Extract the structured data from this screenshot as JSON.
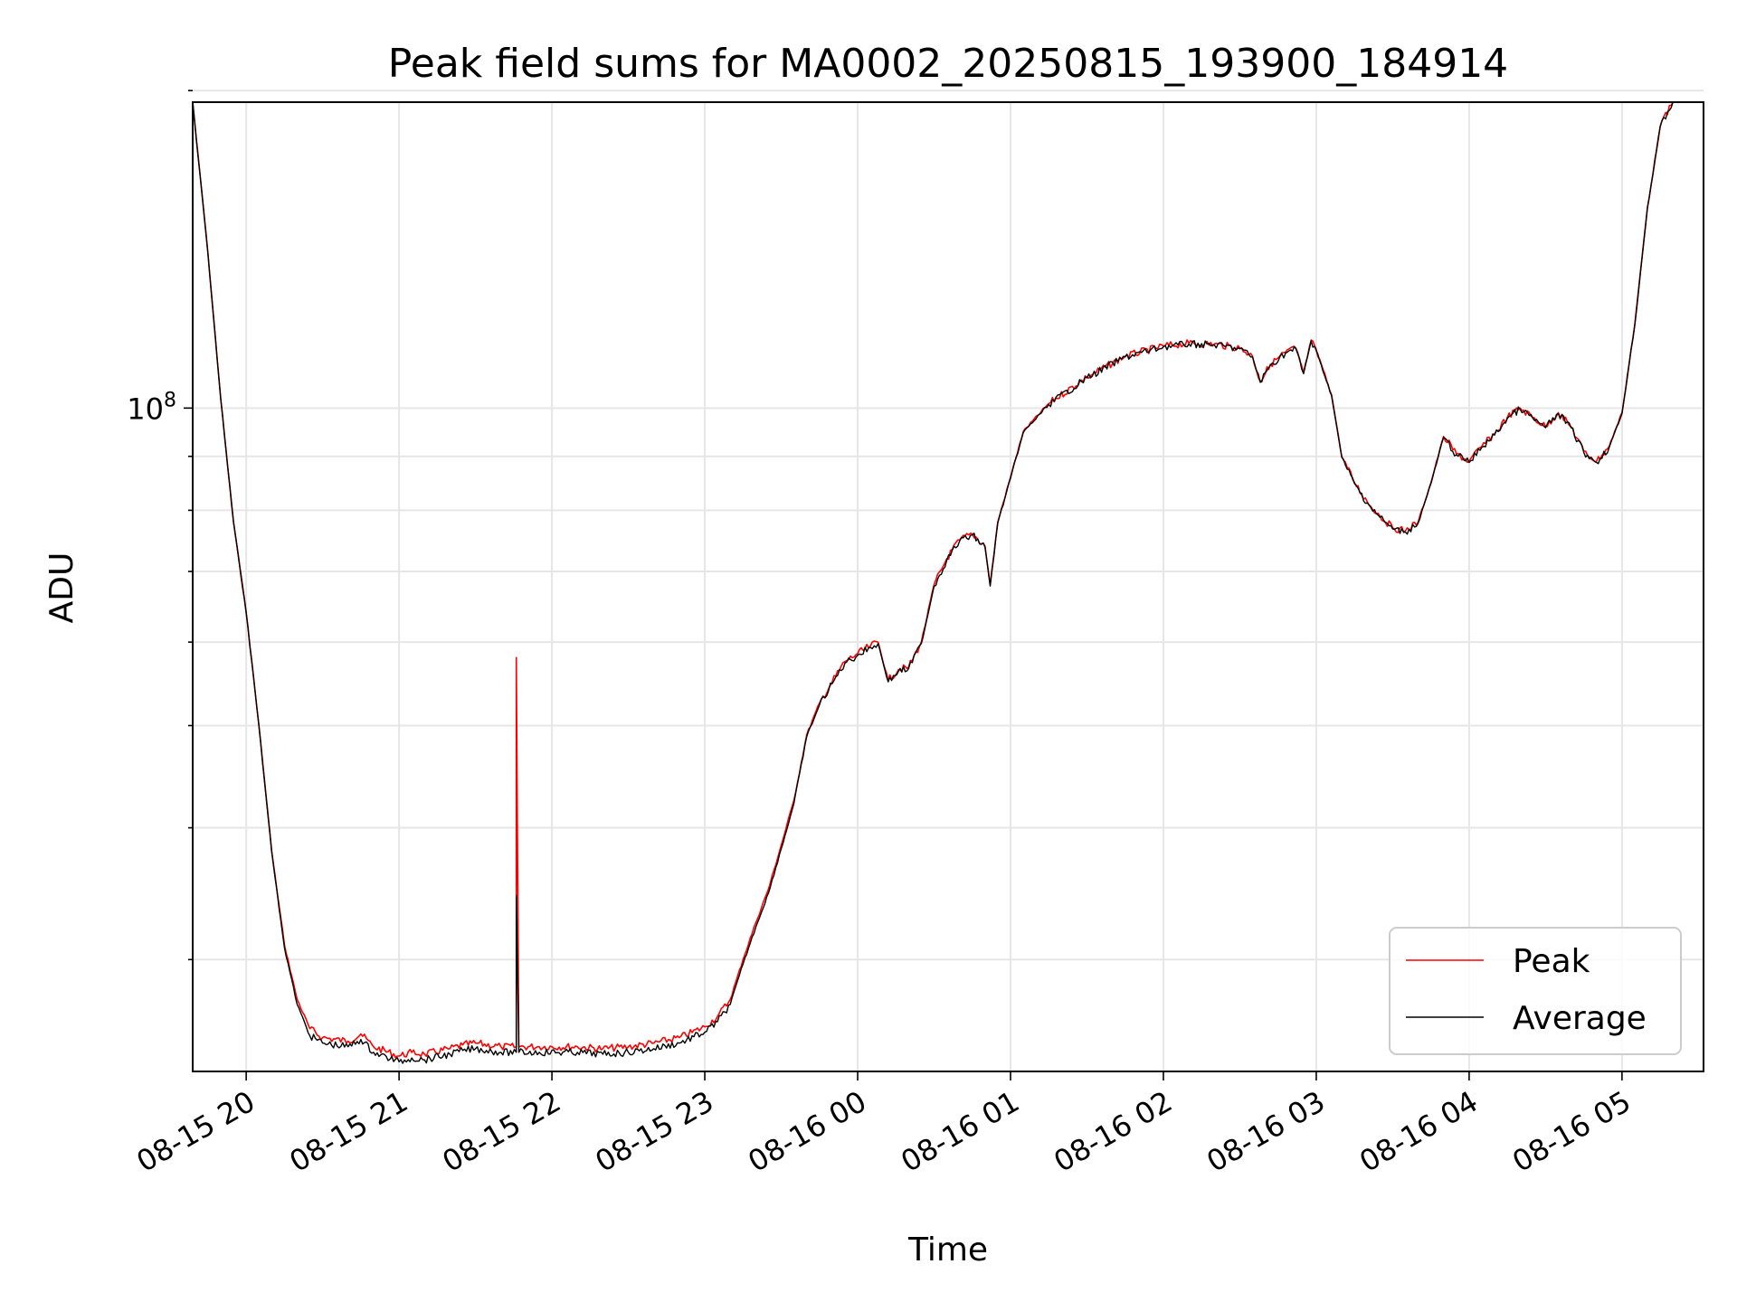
{
  "chart_data": {
    "type": "line",
    "title": "Peak field sums for MA0002_20250815_193900_184914",
    "xlabel": "Time",
    "ylabel": "ADU",
    "y_scale": "log",
    "ylim": [
      23500000,
      195000000
    ],
    "xlim": [
      "2025-08-15 19:39",
      "2025-08-16 05:32"
    ],
    "y_major_ticks": [
      {
        "value": 100000000,
        "base": "10",
        "exp": "8"
      }
    ],
    "y_minor_ticks": [
      30000000,
      40000000,
      50000000,
      60000000,
      70000000,
      80000000,
      90000000,
      200000000
    ],
    "x_ticks": [
      {
        "time": "2025-08-15 20:00",
        "label": "08-15 20"
      },
      {
        "time": "2025-08-15 21:00",
        "label": "08-15 21"
      },
      {
        "time": "2025-08-15 22:00",
        "label": "08-15 22"
      },
      {
        "time": "2025-08-15 23:00",
        "label": "08-15 23"
      },
      {
        "time": "2025-08-16 00:00",
        "label": "08-16 00"
      },
      {
        "time": "2025-08-16 01:00",
        "label": "08-16 01"
      },
      {
        "time": "2025-08-16 02:00",
        "label": "08-16 02"
      },
      {
        "time": "2025-08-16 03:00",
        "label": "08-16 03"
      },
      {
        "time": "2025-08-16 04:00",
        "label": "08-16 04"
      },
      {
        "time": "2025-08-16 05:00",
        "label": "08-16 05"
      }
    ],
    "grid": true,
    "legend_position": "bottom-right",
    "series": [
      {
        "name": "Peak",
        "color": "#ff0000",
        "points": [
          [
            "2025-08-15 19:39",
            195000000
          ],
          [
            "2025-08-15 19:45",
            140000000
          ],
          [
            "2025-08-15 19:50",
            102000000
          ],
          [
            "2025-08-15 19:55",
            78000000
          ],
          [
            "2025-08-15 20:00",
            64000000
          ],
          [
            "2025-08-15 20:05",
            50000000
          ],
          [
            "2025-08-15 20:10",
            38000000
          ],
          [
            "2025-08-15 20:15",
            31000000
          ],
          [
            "2025-08-15 20:20",
            27500000
          ],
          [
            "2025-08-15 20:25",
            25800000
          ],
          [
            "2025-08-15 20:30",
            25300000
          ],
          [
            "2025-08-15 20:40",
            25100000
          ],
          [
            "2025-08-15 20:45",
            25500000
          ],
          [
            "2025-08-15 20:50",
            24800000
          ],
          [
            "2025-08-15 21:00",
            24300000
          ],
          [
            "2025-08-15 21:05",
            24500000
          ],
          [
            "2025-08-15 21:10",
            24400000
          ],
          [
            "2025-08-15 21:20",
            24700000
          ],
          [
            "2025-08-15 21:25",
            24900000
          ],
          [
            "2025-08-15 21:30",
            25000000
          ],
          [
            "2025-08-15 21:40",
            24800000
          ],
          [
            "2025-08-15 21:46",
            24800000
          ],
          [
            "2025-08-15 21:46",
            58000000
          ],
          [
            "2025-08-15 21:47",
            24800000
          ],
          [
            "2025-08-15 21:55",
            24800000
          ],
          [
            "2025-08-15 22:10",
            24800000
          ],
          [
            "2025-08-15 22:20",
            24700000
          ],
          [
            "2025-08-15 22:30",
            24800000
          ],
          [
            "2025-08-15 22:40",
            25000000
          ],
          [
            "2025-08-15 22:50",
            25300000
          ],
          [
            "2025-08-15 23:00",
            25900000
          ],
          [
            "2025-08-15 23:05",
            26500000
          ],
          [
            "2025-08-15 23:10",
            27500000
          ],
          [
            "2025-08-15 23:15",
            30000000
          ],
          [
            "2025-08-15 23:20",
            32500000
          ],
          [
            "2025-08-15 23:25",
            35000000
          ],
          [
            "2025-08-15 23:30",
            38500000
          ],
          [
            "2025-08-15 23:35",
            42500000
          ],
          [
            "2025-08-15 23:40",
            49000000
          ],
          [
            "2025-08-15 23:45",
            52500000
          ],
          [
            "2025-08-15 23:50",
            55000000
          ],
          [
            "2025-08-15 23:55",
            57500000
          ],
          [
            "2025-08-16 00:00",
            58500000
          ],
          [
            "2025-08-16 00:05",
            59500000
          ],
          [
            "2025-08-16 00:08",
            60000000
          ],
          [
            "2025-08-16 00:12",
            55200000
          ],
          [
            "2025-08-16 00:16",
            56500000
          ],
          [
            "2025-08-16 00:20",
            56800000
          ],
          [
            "2025-08-16 00:25",
            60000000
          ],
          [
            "2025-08-16 00:30",
            68000000
          ],
          [
            "2025-08-16 00:35",
            72000000
          ],
          [
            "2025-08-16 00:40",
            75000000
          ],
          [
            "2025-08-16 00:45",
            76000000
          ],
          [
            "2025-08-16 00:50",
            74000000
          ],
          [
            "2025-08-16 00:52",
            68000000
          ],
          [
            "2025-08-16 00:55",
            78000000
          ],
          [
            "2025-08-16 01:00",
            86000000
          ],
          [
            "2025-08-16 01:05",
            95000000
          ],
          [
            "2025-08-16 01:15",
            101000000
          ],
          [
            "2025-08-16 01:30",
            107000000
          ],
          [
            "2025-08-16 01:45",
            112000000
          ],
          [
            "2025-08-16 02:00",
            114500000
          ],
          [
            "2025-08-16 02:10",
            115200000
          ],
          [
            "2025-08-16 02:20",
            115000000
          ],
          [
            "2025-08-16 02:30",
            114000000
          ],
          [
            "2025-08-16 02:35",
            112000000
          ],
          [
            "2025-08-16 02:38",
            106000000
          ],
          [
            "2025-08-16 02:42",
            110000000
          ],
          [
            "2025-08-16 02:48",
            113000000
          ],
          [
            "2025-08-16 02:52",
            114000000
          ],
          [
            "2025-08-16 02:55",
            108000000
          ],
          [
            "2025-08-16 02:58",
            116000000
          ],
          [
            "2025-08-16 03:02",
            110000000
          ],
          [
            "2025-08-16 03:06",
            103000000
          ],
          [
            "2025-08-16 03:10",
            90000000
          ],
          [
            "2025-08-16 03:15",
            85000000
          ],
          [
            "2025-08-16 03:20",
            81500000
          ],
          [
            "2025-08-16 03:25",
            79000000
          ],
          [
            "2025-08-16 03:30",
            77000000
          ],
          [
            "2025-08-16 03:35",
            76500000
          ],
          [
            "2025-08-16 03:40",
            78000000
          ],
          [
            "2025-08-16 03:45",
            85000000
          ],
          [
            "2025-08-16 03:50",
            94000000
          ],
          [
            "2025-08-16 03:55",
            90500000
          ],
          [
            "2025-08-16 04:00",
            89000000
          ],
          [
            "2025-08-16 04:05",
            92000000
          ],
          [
            "2025-08-16 04:10",
            94500000
          ],
          [
            "2025-08-16 04:15",
            98000000
          ],
          [
            "2025-08-16 04:20",
            100000000
          ],
          [
            "2025-08-16 04:25",
            98000000
          ],
          [
            "2025-08-16 04:30",
            96000000
          ],
          [
            "2025-08-16 04:35",
            99000000
          ],
          [
            "2025-08-16 04:40",
            96000000
          ],
          [
            "2025-08-16 04:45",
            91000000
          ],
          [
            "2025-08-16 04:50",
            89000000
          ],
          [
            "2025-08-16 04:55",
            92000000
          ],
          [
            "2025-08-16 05:00",
            99000000
          ],
          [
            "2025-08-16 05:05",
            120000000
          ],
          [
            "2025-08-16 05:10",
            155000000
          ],
          [
            "2025-08-16 05:15",
            185000000
          ],
          [
            "2025-08-16 05:20",
            195000000
          ]
        ]
      },
      {
        "name": "Average",
        "color": "#000000",
        "points": [
          [
            "2025-08-15 19:39",
            195000000
          ],
          [
            "2025-08-15 19:45",
            140000000
          ],
          [
            "2025-08-15 19:50",
            102000000
          ],
          [
            "2025-08-15 19:55",
            78000000
          ],
          [
            "2025-08-15 20:00",
            64000000
          ],
          [
            "2025-08-15 20:05",
            50000000
          ],
          [
            "2025-08-15 20:10",
            38000000
          ],
          [
            "2025-08-15 20:15",
            30800000
          ],
          [
            "2025-08-15 20:20",
            27200000
          ],
          [
            "2025-08-15 20:25",
            25400000
          ],
          [
            "2025-08-15 20:30",
            25000000
          ],
          [
            "2025-08-15 20:40",
            24800000
          ],
          [
            "2025-08-15 20:45",
            25200000
          ],
          [
            "2025-08-15 20:50",
            24500000
          ],
          [
            "2025-08-15 21:00",
            24000000
          ],
          [
            "2025-08-15 21:05",
            24200000
          ],
          [
            "2025-08-15 21:10",
            24100000
          ],
          [
            "2025-08-15 21:20",
            24400000
          ],
          [
            "2025-08-15 21:25",
            24600000
          ],
          [
            "2025-08-15 21:30",
            24700000
          ],
          [
            "2025-08-15 21:40",
            24500000
          ],
          [
            "2025-08-15 21:46",
            24500000
          ],
          [
            "2025-08-15 21:46",
            34500000
          ],
          [
            "2025-08-15 21:47",
            24500000
          ],
          [
            "2025-08-15 21:55",
            24500000
          ],
          [
            "2025-08-15 22:10",
            24500000
          ],
          [
            "2025-08-15 22:20",
            24400000
          ],
          [
            "2025-08-15 22:30",
            24500000
          ],
          [
            "2025-08-15 22:40",
            24700000
          ],
          [
            "2025-08-15 22:50",
            25000000
          ],
          [
            "2025-08-15 23:00",
            25600000
          ],
          [
            "2025-08-15 23:05",
            26200000
          ],
          [
            "2025-08-15 23:10",
            27200000
          ],
          [
            "2025-08-15 23:15",
            29700000
          ],
          [
            "2025-08-15 23:20",
            32200000
          ],
          [
            "2025-08-15 23:25",
            34700000
          ],
          [
            "2025-08-15 23:30",
            38200000
          ],
          [
            "2025-08-15 23:35",
            42200000
          ],
          [
            "2025-08-15 23:40",
            48800000
          ],
          [
            "2025-08-15 23:45",
            52300000
          ],
          [
            "2025-08-15 23:50",
            54800000
          ],
          [
            "2025-08-15 23:55",
            57300000
          ],
          [
            "2025-08-16 00:00",
            58300000
          ],
          [
            "2025-08-16 00:05",
            59300000
          ],
          [
            "2025-08-16 00:08",
            59800000
          ],
          [
            "2025-08-16 00:12",
            55000000
          ],
          [
            "2025-08-16 00:16",
            56300000
          ],
          [
            "2025-08-16 00:20",
            56600000
          ],
          [
            "2025-08-16 00:25",
            59800000
          ],
          [
            "2025-08-16 00:30",
            67800000
          ],
          [
            "2025-08-16 00:35",
            71800000
          ],
          [
            "2025-08-16 00:40",
            74800000
          ],
          [
            "2025-08-16 00:45",
            75800000
          ],
          [
            "2025-08-16 00:50",
            73800000
          ],
          [
            "2025-08-16 00:52",
            67800000
          ],
          [
            "2025-08-16 00:55",
            77800000
          ],
          [
            "2025-08-16 01:00",
            85800000
          ],
          [
            "2025-08-16 01:05",
            94800000
          ],
          [
            "2025-08-16 01:15",
            100800000
          ],
          [
            "2025-08-16 01:30",
            106800000
          ],
          [
            "2025-08-16 01:45",
            111800000
          ],
          [
            "2025-08-16 02:00",
            114300000
          ],
          [
            "2025-08-16 02:10",
            115000000
          ],
          [
            "2025-08-16 02:20",
            114800000
          ],
          [
            "2025-08-16 02:30",
            113800000
          ],
          [
            "2025-08-16 02:35",
            111800000
          ],
          [
            "2025-08-16 02:38",
            105800000
          ],
          [
            "2025-08-16 02:42",
            109800000
          ],
          [
            "2025-08-16 02:48",
            112800000
          ],
          [
            "2025-08-16 02:52",
            113800000
          ],
          [
            "2025-08-16 02:55",
            107800000
          ],
          [
            "2025-08-16 02:58",
            115800000
          ],
          [
            "2025-08-16 03:02",
            109800000
          ],
          [
            "2025-08-16 03:06",
            102800000
          ],
          [
            "2025-08-16 03:10",
            89800000
          ],
          [
            "2025-08-16 03:15",
            84800000
          ],
          [
            "2025-08-16 03:20",
            81300000
          ],
          [
            "2025-08-16 03:25",
            78800000
          ],
          [
            "2025-08-16 03:30",
            76800000
          ],
          [
            "2025-08-16 03:35",
            76300000
          ],
          [
            "2025-08-16 03:40",
            77800000
          ],
          [
            "2025-08-16 03:45",
            84800000
          ],
          [
            "2025-08-16 03:50",
            93800000
          ],
          [
            "2025-08-16 03:55",
            90300000
          ],
          [
            "2025-08-16 04:00",
            88800000
          ],
          [
            "2025-08-16 04:05",
            91800000
          ],
          [
            "2025-08-16 04:10",
            94300000
          ],
          [
            "2025-08-16 04:15",
            97800000
          ],
          [
            "2025-08-16 04:20",
            99800000
          ],
          [
            "2025-08-16 04:25",
            97800000
          ],
          [
            "2025-08-16 04:30",
            95800000
          ],
          [
            "2025-08-16 04:35",
            98800000
          ],
          [
            "2025-08-16 04:40",
            95800000
          ],
          [
            "2025-08-16 04:45",
            90800000
          ],
          [
            "2025-08-16 04:50",
            88800000
          ],
          [
            "2025-08-16 04:55",
            91800000
          ],
          [
            "2025-08-16 05:00",
            98800000
          ],
          [
            "2025-08-16 05:05",
            119800000
          ],
          [
            "2025-08-16 05:10",
            154800000
          ],
          [
            "2025-08-16 05:15",
            184800000
          ],
          [
            "2025-08-16 05:20",
            195000000
          ]
        ]
      }
    ]
  }
}
